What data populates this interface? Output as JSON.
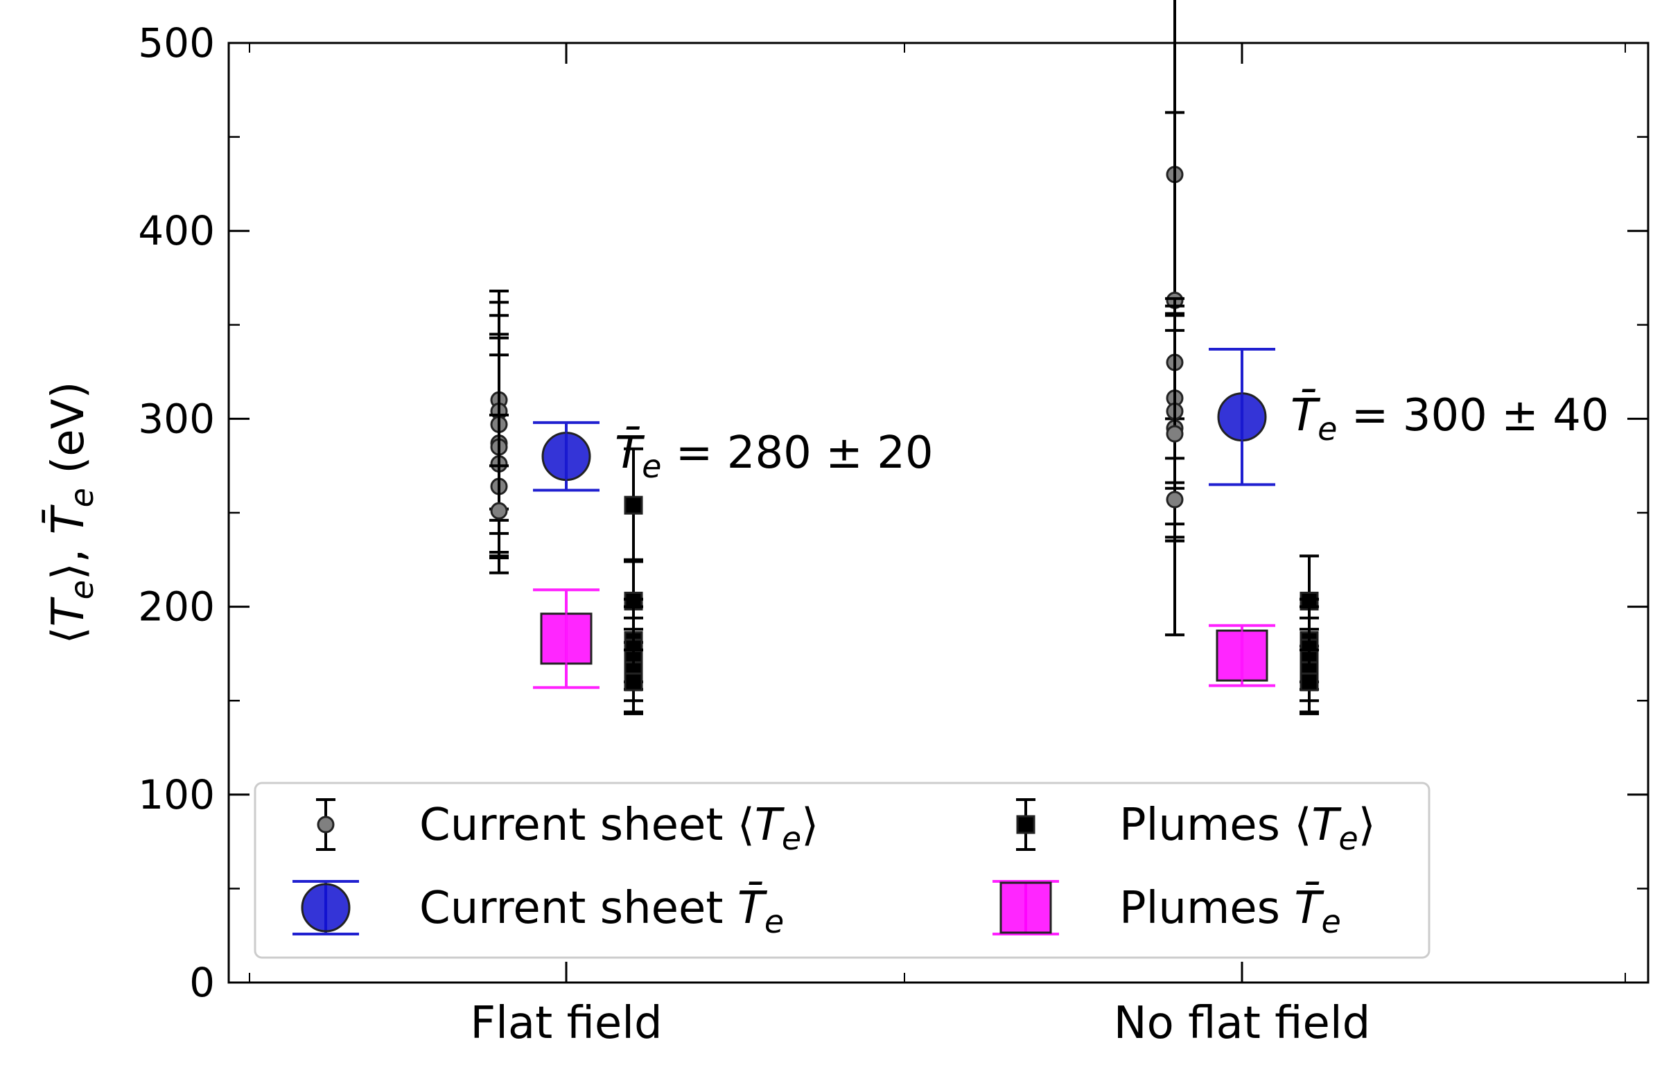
{
  "chart_data": {
    "type": "scatter",
    "xlabel": "",
    "ylabel": "⟨Tₑ⟩, T̄ₑ (eV)",
    "ylabel_parts": {
      "a": "⟨",
      "T": "T",
      "e": "e",
      "b": "⟩, ",
      "Tbar": "T̄",
      "e2": "e",
      "unit": " (eV)"
    },
    "ylim": [
      0,
      500
    ],
    "yticks": [
      "0",
      "100",
      "200",
      "300",
      "400",
      "500"
    ],
    "categories": [
      "Flat field",
      "No flat field"
    ],
    "grid": false,
    "legend_placement": "lower-left",
    "series": [
      {
        "name": "Current sheet ⟨Te⟩",
        "legend_label": {
          "text": "Current sheet ⟨",
          "T": "T",
          "e": "e",
          "close": "⟩"
        },
        "color": "#808080",
        "marker": "circle-small",
        "points": [
          {
            "category": "Flat field",
            "y": 310,
            "err": 58
          },
          {
            "category": "Flat field",
            "y": 304,
            "err": 58
          },
          {
            "category": "Flat field",
            "y": 297,
            "err": 58
          },
          {
            "category": "Flat field",
            "y": 287,
            "err": 58
          },
          {
            "category": "Flat field",
            "y": 285,
            "err": 58
          },
          {
            "category": "Flat field",
            "y": 276,
            "err": 58
          },
          {
            "category": "Flat field",
            "y": 264,
            "err": 38
          },
          {
            "category": "Flat field",
            "y": 251,
            "err": 24
          },
          {
            "category": "No flat field",
            "y": 430,
            "err": 245
          },
          {
            "category": "No flat field",
            "y": 363,
            "err": 100
          },
          {
            "category": "No flat field",
            "y": 330,
            "err": 30
          },
          {
            "category": "No flat field",
            "y": 311,
            "err": 45
          },
          {
            "category": "No flat field",
            "y": 304,
            "err": 60
          },
          {
            "category": "No flat field",
            "y": 295,
            "err": 60
          },
          {
            "category": "No flat field",
            "y": 292,
            "err": 55
          },
          {
            "category": "No flat field",
            "y": 257,
            "err": 22
          }
        ]
      },
      {
        "name": "Plumes ⟨Te⟩",
        "legend_label": {
          "text": "Plumes ⟨",
          "T": "T",
          "e": "e",
          "close": "⟩"
        },
        "color": "#000000",
        "marker": "square-small",
        "points": [
          {
            "category": "Flat field",
            "y": 254,
            "err": 30
          },
          {
            "category": "Flat field",
            "y": 203,
            "err": 22
          },
          {
            "category": "Flat field",
            "y": 182,
            "err": 22
          },
          {
            "category": "Flat field",
            "y": 178,
            "err": 22
          },
          {
            "category": "Flat field",
            "y": 172,
            "err": 22
          },
          {
            "category": "Flat field",
            "y": 166,
            "err": 22
          },
          {
            "category": "Flat field",
            "y": 160,
            "err": 17
          },
          {
            "category": "No flat field",
            "y": 203,
            "err": 24
          },
          {
            "category": "No flat field",
            "y": 182,
            "err": 22
          },
          {
            "category": "No flat field",
            "y": 178,
            "err": 22
          },
          {
            "category": "No flat field",
            "y": 172,
            "err": 22
          },
          {
            "category": "No flat field",
            "y": 166,
            "err": 22
          },
          {
            "category": "No flat field",
            "y": 160,
            "err": 17
          }
        ]
      },
      {
        "name": "Current sheet T̄e",
        "legend_label": {
          "text": "Current sheet ",
          "Tbar": "T̄",
          "e": "e"
        },
        "color": "#1010d0",
        "marker": "circle-large",
        "points": [
          {
            "category": "Flat field",
            "y": 280,
            "err": 18
          },
          {
            "category": "No flat field",
            "y": 301,
            "err": 36
          }
        ]
      },
      {
        "name": "Plumes T̄e",
        "legend_label": {
          "text": "Plumes ",
          "Tbar": "T̄",
          "e": "e"
        },
        "color": "#ff00ff",
        "marker": "square-large",
        "points": [
          {
            "category": "Flat field",
            "y": 183,
            "err": 26
          },
          {
            "category": "No flat field",
            "y": 174,
            "err": 16
          }
        ]
      }
    ],
    "annotations": [
      {
        "category": "Flat field",
        "Tbar": "T̄",
        "e": "e",
        "text": " = 280 ± 20",
        "y": 282
      },
      {
        "category": "No flat field",
        "Tbar": "T̄",
        "e": "e",
        "text": " = 300 ± 40",
        "y": 302
      }
    ]
  }
}
